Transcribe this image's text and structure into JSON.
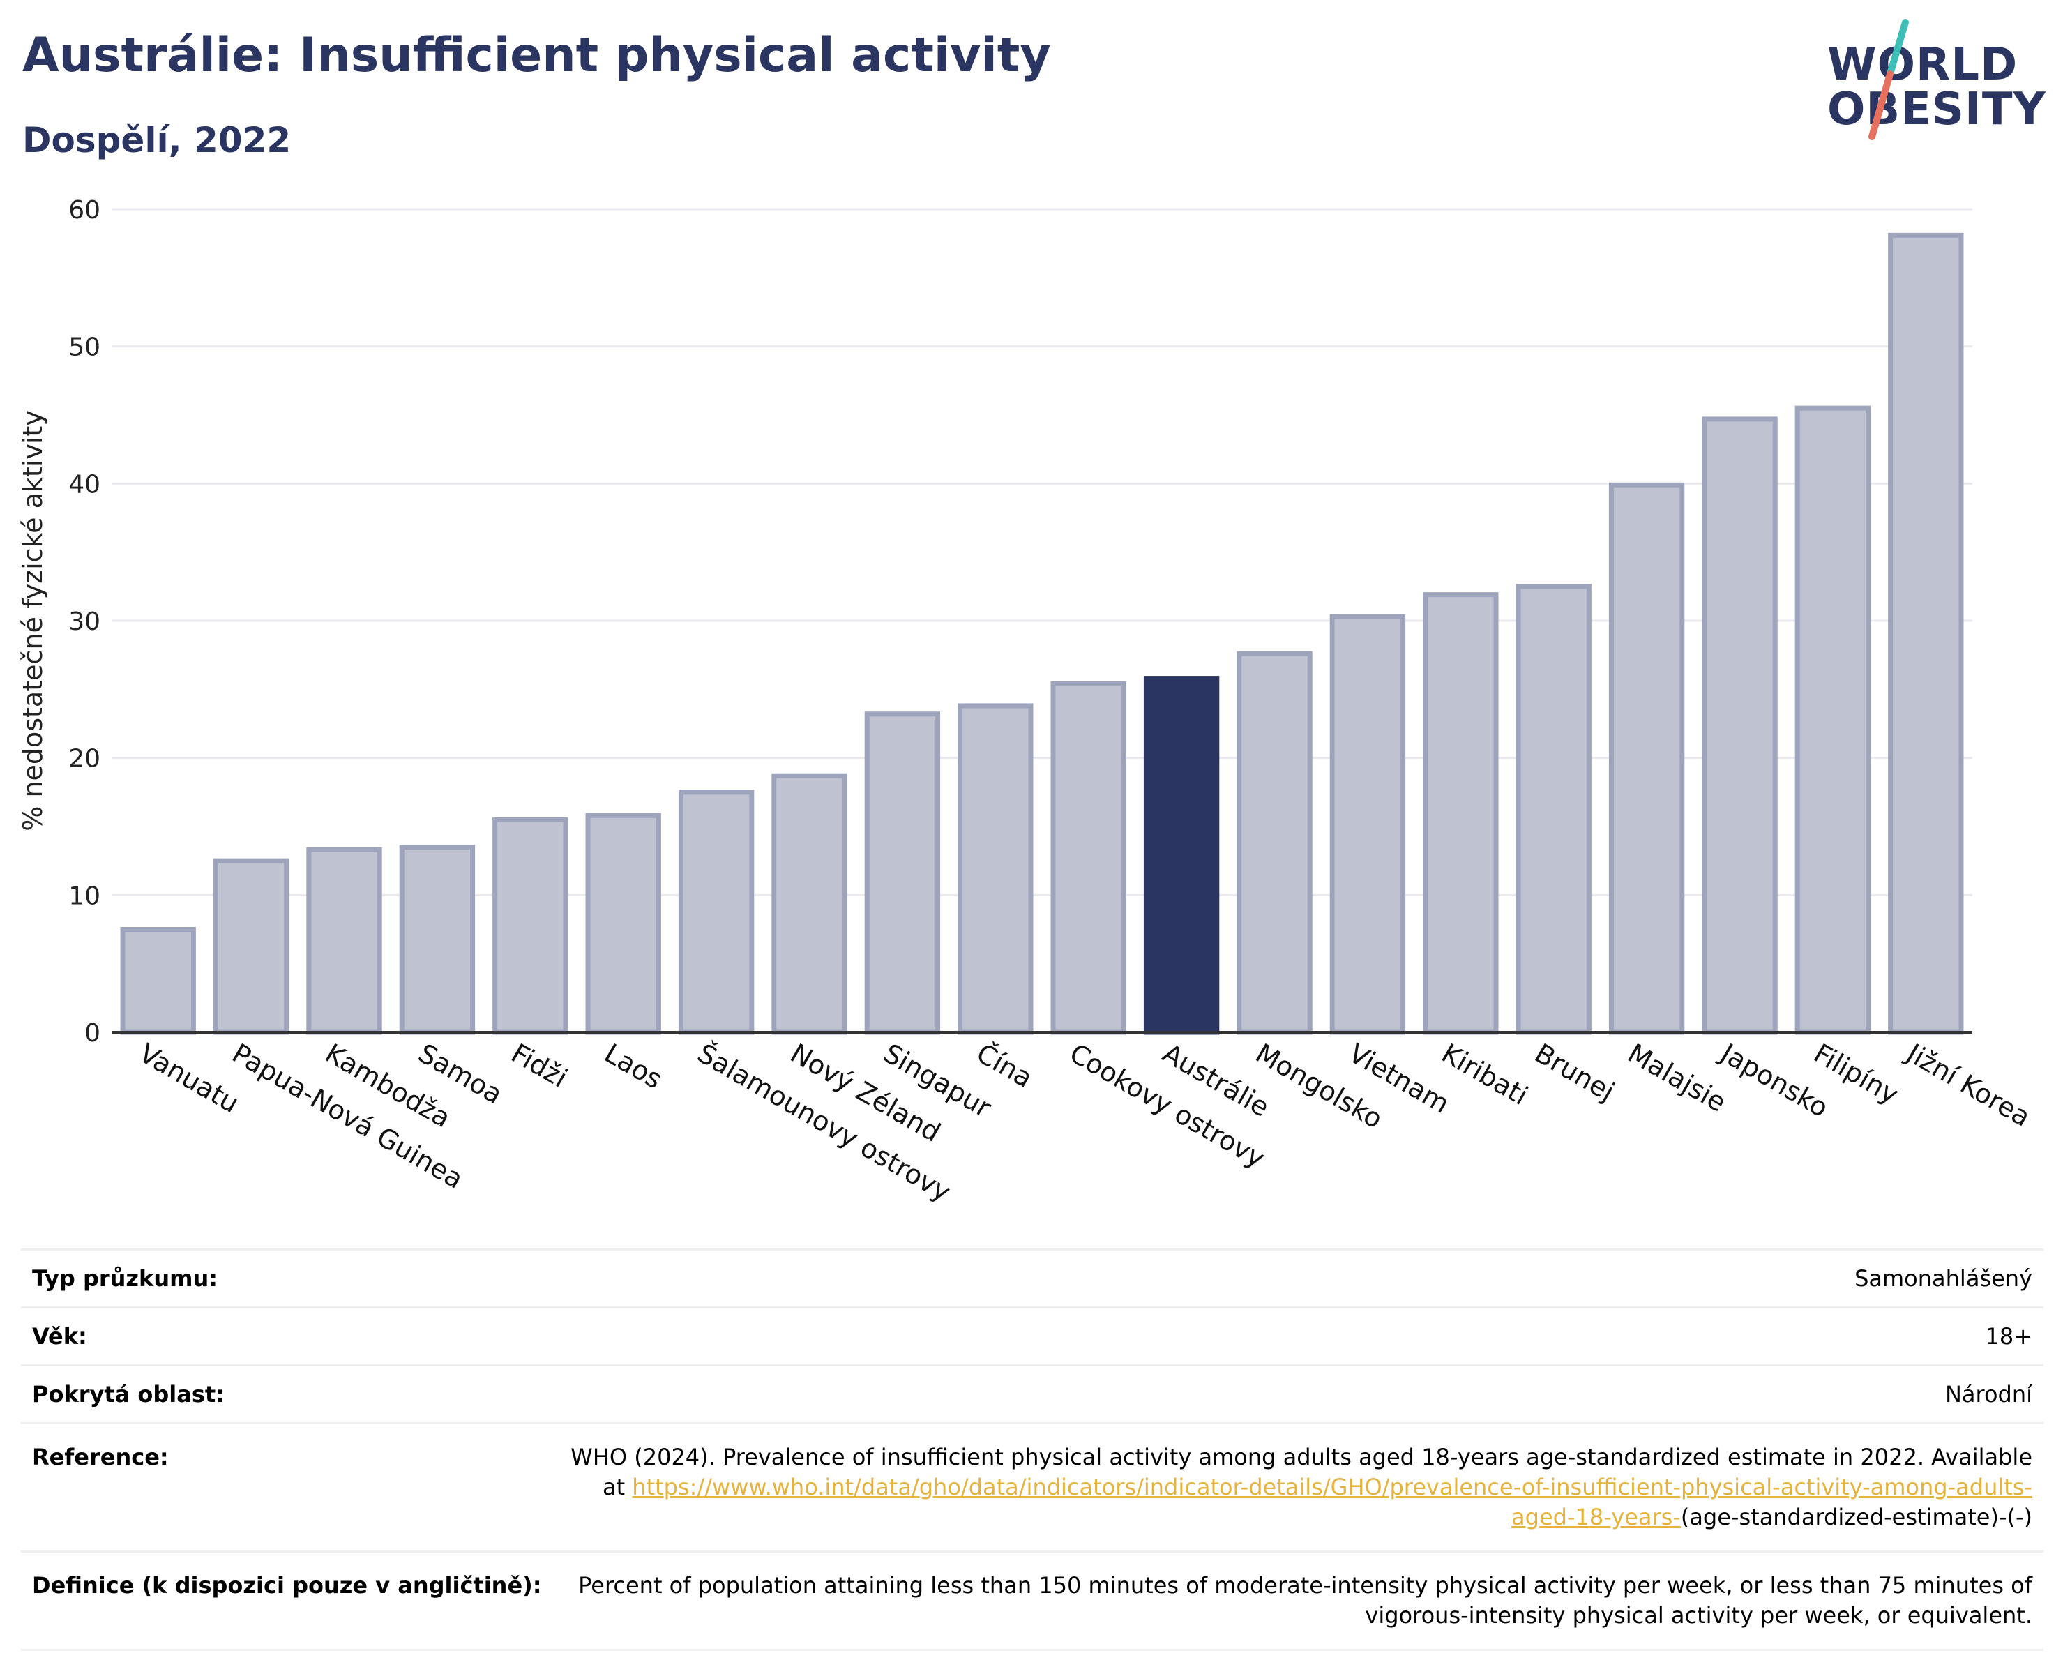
{
  "title": "Austrálie: Insufficient physical activity",
  "subtitle": "Dospělí, 2022",
  "logo": {
    "line1": "WORLD",
    "line2": "OBESITY",
    "accent_teal": "#3dbfb8",
    "accent_coral": "#e8705f"
  },
  "colors": {
    "highlight": "#2a3561",
    "bar_fill": "#bfc2d0",
    "bar_stroke": "#9fa4bd",
    "grid": "#e9e9ee"
  },
  "chart_data": {
    "type": "bar",
    "title": "Austrálie: Insufficient physical activity",
    "subtitle": "Dospělí, 2022",
    "xlabel": "",
    "ylabel": "% nedostatečné fyzické aktivity",
    "ylim": [
      0,
      60
    ],
    "yticks": [
      0,
      10,
      20,
      30,
      40,
      50,
      60
    ],
    "grid": true,
    "highlight": "Austrálie",
    "categories": [
      "Vanuatu",
      "Papua-Nová Guinea",
      "Kambodža",
      "Samoa",
      "Fidži",
      "Laos",
      "Šalamounovy ostrovy",
      "Nový Zéland",
      "Singapur",
      "Čína",
      "Cookovy ostrovy",
      "Austrálie",
      "Mongolsko",
      "Vietnam",
      "Kiribati",
      "Brunej",
      "Malajsie",
      "Japonsko",
      "Filipíny",
      "Jižní Korea"
    ],
    "values": [
      7.5,
      12.5,
      13.3,
      13.5,
      15.5,
      15.8,
      17.5,
      18.7,
      23.2,
      23.8,
      25.4,
      25.8,
      27.6,
      30.3,
      31.9,
      32.5,
      39.9,
      44.7,
      45.5,
      58.1
    ]
  },
  "info": {
    "survey_type_label": "Typ průzkumu:",
    "survey_type_value": "Samonahlášený",
    "age_label": "Věk:",
    "age_value": "18+",
    "area_label": "Pokrytá oblast:",
    "area_value": "Národní",
    "reference_label": "Reference:",
    "reference_text": "WHO (2024). Prevalence of insufficient physical activity among adults aged 18-years age-standardized estimate in 2022. Available at",
    "reference_link": "https://www.who.int/data/gho/data/indicators/indicator-details/GHO/prevalence-of-insufficient-physical-activity-among-adults-aged-18-years-",
    "reference_suffix": "(age-standardized-estimate)-(-)",
    "definition_label": "Definice (k dispozici pouze v angličtině):",
    "definition_text": "Percent of population attaining less than 150 minutes of moderate-intensity physical activity per week, or less than 75 minutes of vigorous-intensity physical activity per week, or equivalent."
  }
}
